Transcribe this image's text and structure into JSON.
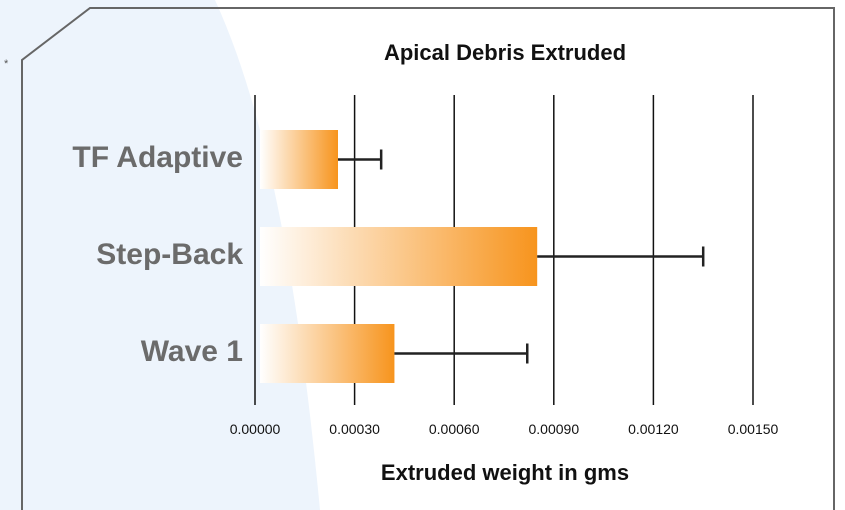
{
  "chart_data": {
    "type": "bar",
    "orientation": "horizontal",
    "title": "Apical Debris Extruded",
    "xlabel": "Extruded weight in gms",
    "ylabel": "",
    "categories": [
      "TF Adaptive",
      "Step-Back",
      "Wave 1"
    ],
    "values": [
      0.00025,
      0.00085,
      0.00042
    ],
    "error": [
      0.00013,
      0.0005,
      0.0004
    ],
    "xlim": [
      0,
      0.0015
    ],
    "ticks": [
      "0.00000",
      "0.00030",
      "0.00060",
      "0.00090",
      "0.00120",
      "0.00150"
    ],
    "tick_values": [
      0,
      0.0003,
      0.0006,
      0.0009,
      0.0012,
      0.0015
    ],
    "grid": "vertical",
    "colors": {
      "bar_start": "#ffffff",
      "bar_end": "#f7941d",
      "grid": "#111111",
      "category_text": "#6b6b6b"
    }
  },
  "decor": {
    "asterisk": "*"
  }
}
